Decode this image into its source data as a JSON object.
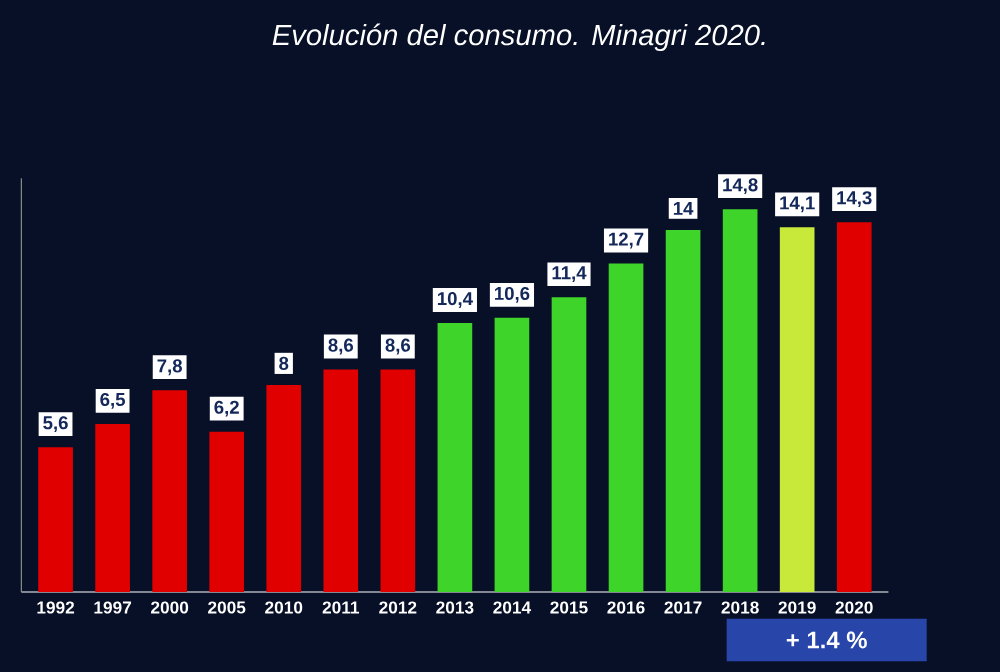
{
  "chart_data": {
    "type": "bar",
    "title": "Evolución  del consumo. Minagri 2020.",
    "categories": [
      "1992",
      "1997",
      "2000",
      "2005",
      "2010",
      "2011",
      "2012",
      "2013",
      "2014",
      "2015",
      "2016",
      "2017",
      "2018",
      "2019",
      "2020"
    ],
    "values": [
      5.6,
      6.5,
      7.8,
      6.2,
      8,
      8.6,
      8.6,
      10.4,
      10.6,
      11.4,
      12.7,
      14,
      14.8,
      14.1,
      14.3
    ],
    "ylim": [
      0,
      16
    ],
    "value_labels": [
      "5,6",
      "6,5",
      "7,8",
      "6,2",
      "8",
      "8,6",
      "8,6",
      "10,4",
      "10,6",
      "11,4",
      "12,7",
      "14",
      "14,8",
      "14,1",
      "14,3"
    ],
    "colors": [
      "#e00000",
      "#e00000",
      "#e00000",
      "#e00000",
      "#e00000",
      "#e00000",
      "#e00000",
      "#3ed42a",
      "#3ed42a",
      "#3ed42a",
      "#3ed42a",
      "#3ed42a",
      "#3ed42a",
      "#c8e83a",
      "#e00000"
    ],
    "annotations": [
      "+ 1.4 %"
    ]
  }
}
